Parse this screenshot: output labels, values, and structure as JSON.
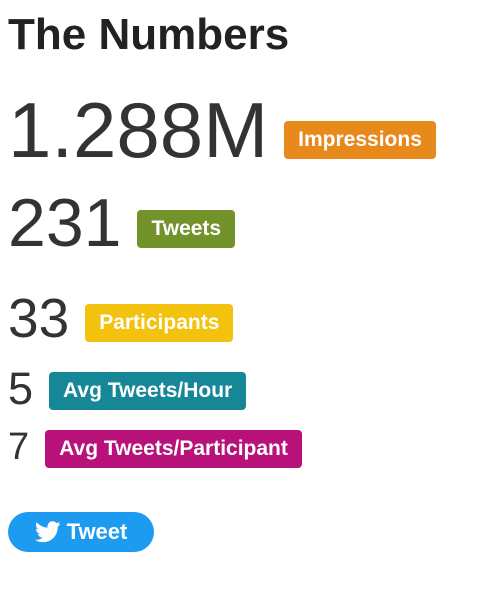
{
  "title": "The Numbers",
  "stats": [
    {
      "value": "1.288M",
      "label": "Impressions",
      "color": "#e8891c"
    },
    {
      "value": "231",
      "label": "Tweets",
      "color": "#72932a"
    },
    {
      "value": "33",
      "label": "Participants",
      "color": "#f2c20f"
    },
    {
      "value": "5",
      "label": "Avg Tweets/Hour",
      "color": "#168797"
    },
    {
      "value": "7",
      "label": "Avg Tweets/Participant",
      "color": "#b8127a"
    }
  ],
  "tweet_button": {
    "label": "Tweet",
    "icon": "twitter-bird-icon",
    "color": "#1d9bf0"
  }
}
